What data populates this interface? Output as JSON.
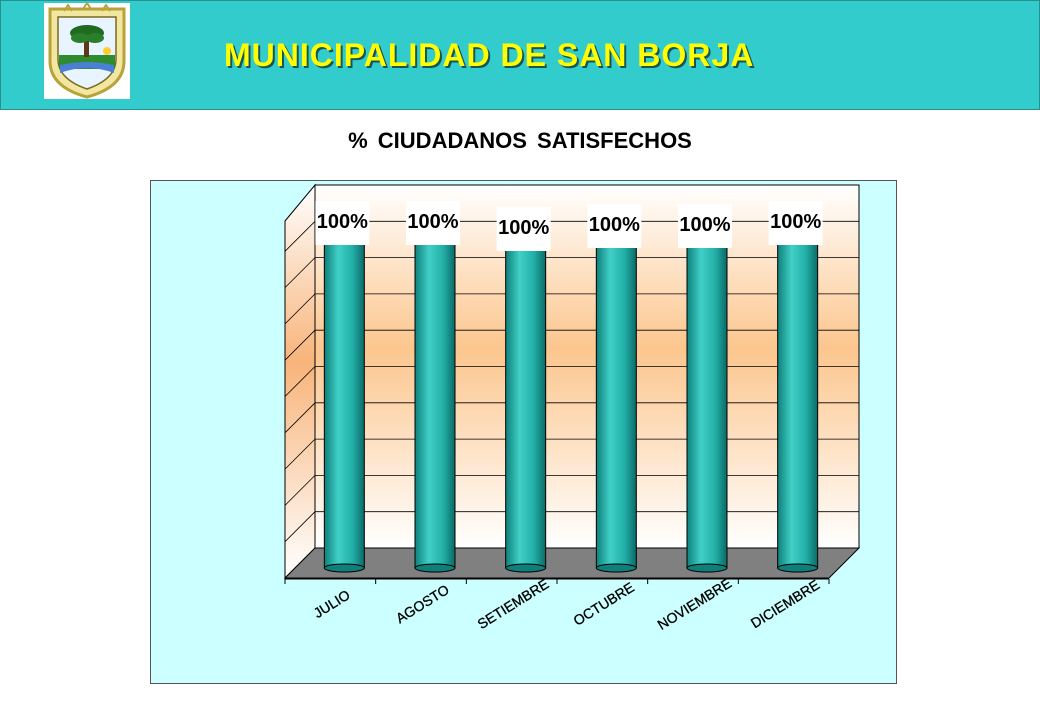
{
  "header": {
    "title": "MUNICIPALIDAD DE SAN BORJA",
    "background_color": "#33cccc",
    "title_color": "#ffff00",
    "logo_icon": "municipal-coat-of-arms-icon"
  },
  "chart_data": {
    "type": "bar",
    "title": "% CIUDADANOS SATISFECHOS",
    "categories": [
      "JULIO",
      "AGOSTO",
      "SETIEMBRE",
      "OCTUBRE",
      "NOVIEMBRE",
      "DICIEMBRE"
    ],
    "values": [
      100,
      100,
      100,
      100,
      100,
      100
    ],
    "data_labels": [
      "100%",
      "100%",
      "100%",
      "100%",
      "100%",
      "100%"
    ],
    "ylim": [
      0,
      100
    ],
    "grid": true,
    "bar_style": "3d-cylinder",
    "bar_color": "#20b2aa",
    "floor_color": "#808080",
    "xlabel": "",
    "ylabel": ""
  }
}
